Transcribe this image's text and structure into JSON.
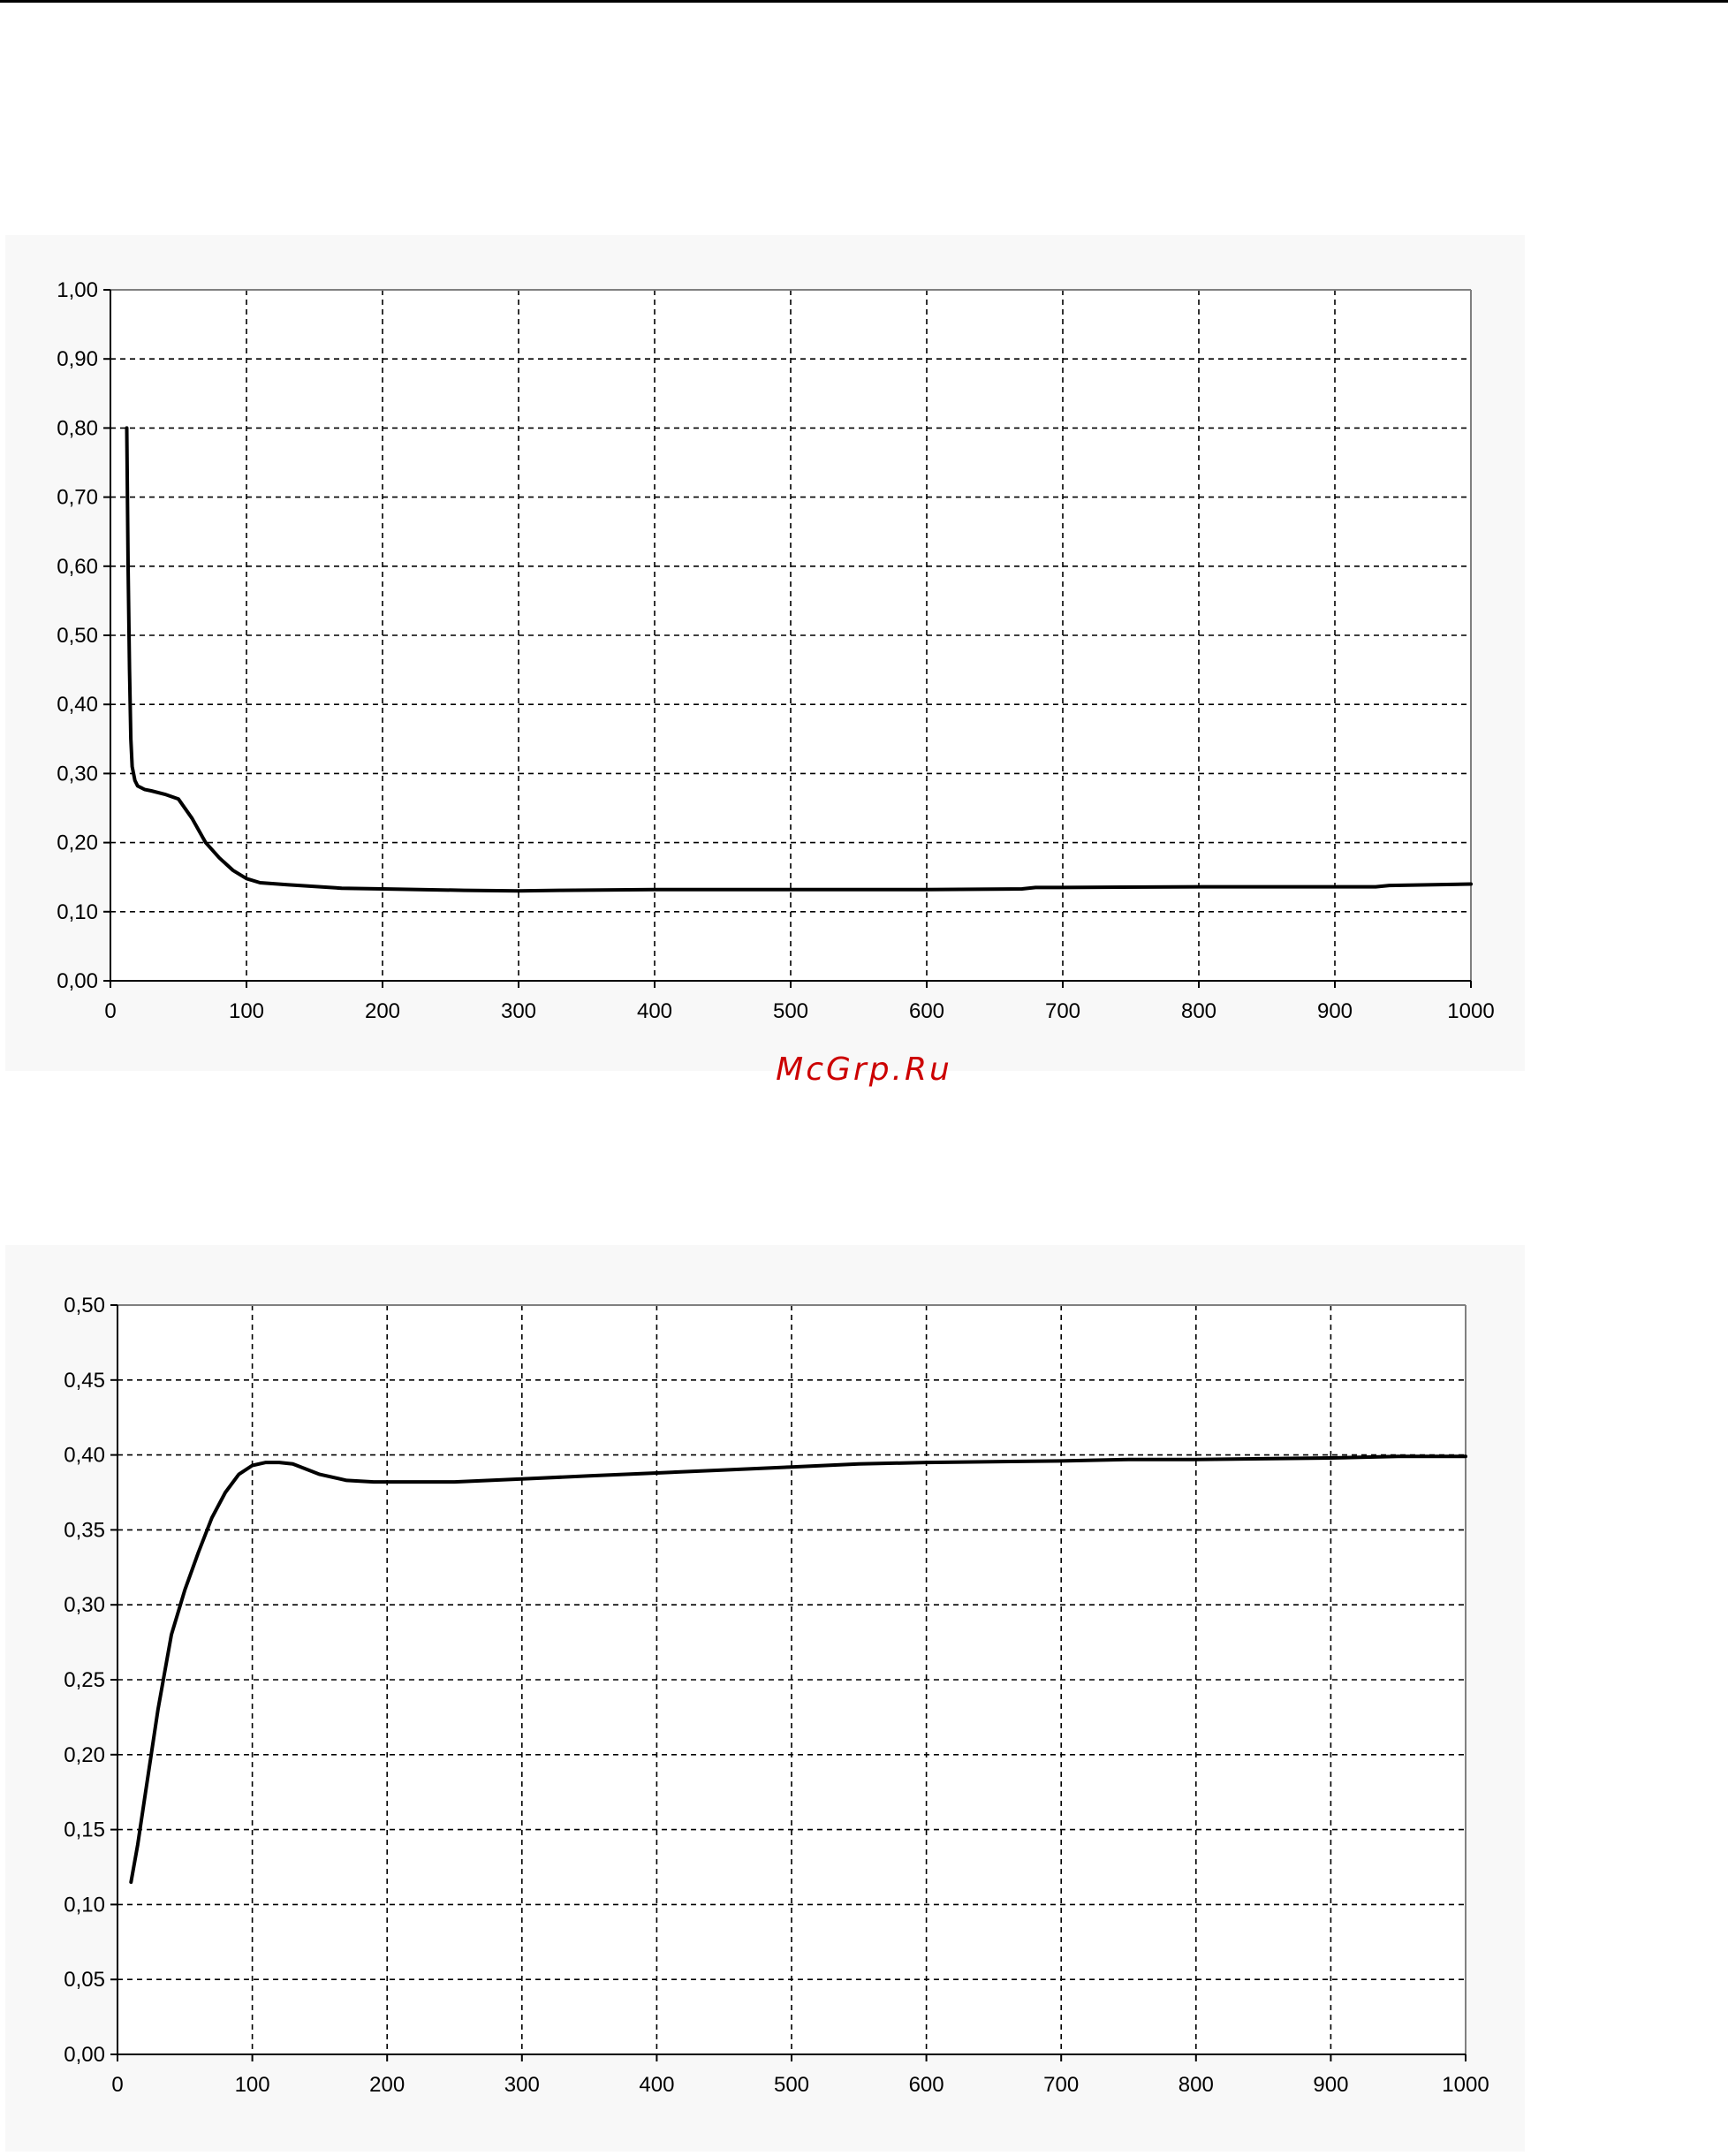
{
  "watermark": "McGrp.Ru",
  "colors": {
    "line": "#000000",
    "grid": "#000000",
    "watermark": "#cc0000",
    "chart_background": "#f8f8f8"
  },
  "chart_data": [
    {
      "type": "line",
      "title": "",
      "xlabel": "",
      "ylabel": "",
      "xlim": [
        0,
        1000
      ],
      "ylim": [
        0,
        1
      ],
      "grid": true,
      "legend": "none",
      "x_ticks": [
        "0",
        "100",
        "200",
        "300",
        "400",
        "500",
        "600",
        "700",
        "800",
        "900",
        "1000"
      ],
      "y_ticks": [
        "0,00",
        "0,10",
        "0,20",
        "0,30",
        "0,40",
        "0,50",
        "0,60",
        "0,70",
        "0,80",
        "0,90",
        "1,00"
      ],
      "series": [
        {
          "x": [
            12,
            13,
            14,
            15,
            16,
            18,
            20,
            25,
            30,
            40,
            50,
            60,
            70,
            80,
            90,
            100,
            110,
            130,
            170,
            200,
            260,
            300,
            330,
            400,
            500,
            600,
            670,
            680,
            700,
            800,
            930,
            940,
            1000
          ],
          "y": [
            0.8,
            0.6,
            0.45,
            0.35,
            0.31,
            0.29,
            0.282,
            0.277,
            0.275,
            0.27,
            0.263,
            0.235,
            0.2,
            0.178,
            0.16,
            0.148,
            0.142,
            0.139,
            0.134,
            0.133,
            0.131,
            0.13,
            0.131,
            0.132,
            0.132,
            0.132,
            0.133,
            0.135,
            0.135,
            0.136,
            0.136,
            0.138,
            0.14
          ]
        }
      ]
    },
    {
      "type": "line",
      "title": "",
      "xlabel": "",
      "ylabel": "",
      "xlim": [
        0,
        1000
      ],
      "ylim": [
        0,
        0.5
      ],
      "grid": true,
      "legend": "none",
      "x_ticks": [
        "0",
        "100",
        "200",
        "300",
        "400",
        "500",
        "600",
        "700",
        "800",
        "900",
        "1000"
      ],
      "y_ticks": [
        "0,00",
        "0,05",
        "0,10",
        "0,15",
        "0,20",
        "0,25",
        "0,30",
        "0,35",
        "0,40",
        "0,45",
        "0,50"
      ],
      "series": [
        {
          "x": [
            10,
            15,
            20,
            30,
            40,
            50,
            60,
            70,
            80,
            90,
            100,
            110,
            120,
            130,
            150,
            170,
            190,
            200,
            250,
            300,
            350,
            400,
            450,
            500,
            550,
            600,
            700,
            750,
            800,
            900,
            950,
            1000
          ],
          "y": [
            0.115,
            0.14,
            0.17,
            0.23,
            0.28,
            0.31,
            0.335,
            0.358,
            0.375,
            0.387,
            0.393,
            0.395,
            0.395,
            0.394,
            0.387,
            0.383,
            0.382,
            0.382,
            0.382,
            0.384,
            0.386,
            0.388,
            0.39,
            0.392,
            0.394,
            0.395,
            0.396,
            0.397,
            0.397,
            0.398,
            0.399,
            0.399
          ]
        }
      ]
    }
  ]
}
